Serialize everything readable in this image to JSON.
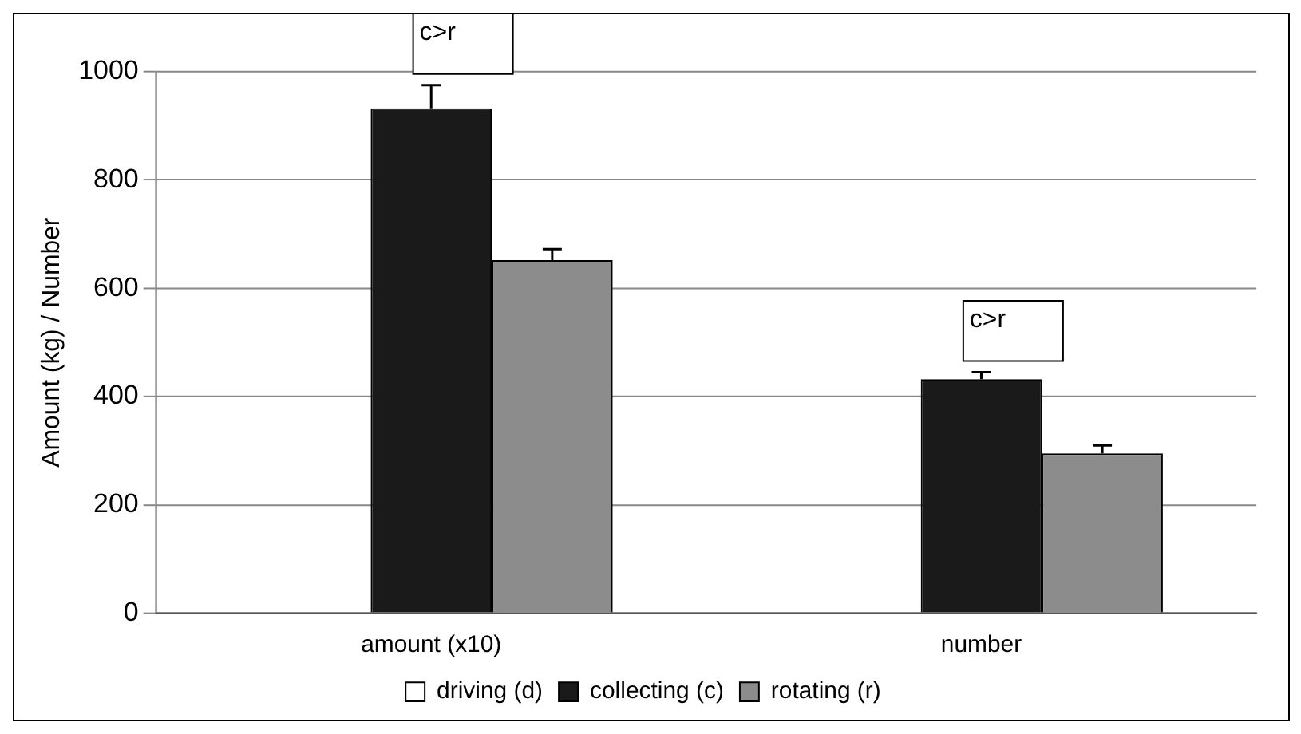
{
  "chart_data": {
    "type": "bar",
    "ylabel": "Amount (kg) / Number",
    "categories": [
      "amount (x10)",
      "number"
    ],
    "series": [
      {
        "name": "driving (d)",
        "color": "#ffffff",
        "values": [
          0,
          0
        ]
      },
      {
        "name": "collecting (c)",
        "color": "#1a1a1a",
        "values": [
          932,
          432
        ],
        "errors": [
          [
            932,
            975
          ],
          [
            432,
            445
          ]
        ]
      },
      {
        "name": "rotating (r)",
        "color": "#8c8c8c",
        "values": [
          652,
          295
        ],
        "errors": [
          [
            652,
            672
          ],
          [
            295,
            310
          ]
        ]
      }
    ],
    "ylim": [
      0,
      1000
    ],
    "yticks": [
      0,
      200,
      400,
      600,
      800,
      1000
    ],
    "grid": "y",
    "legend": "bottom",
    "annotations": [
      {
        "text": "c>r",
        "x": "amount (x10)",
        "y": 975
      },
      {
        "text": "c>r",
        "x": "number",
        "y": 445
      }
    ]
  }
}
